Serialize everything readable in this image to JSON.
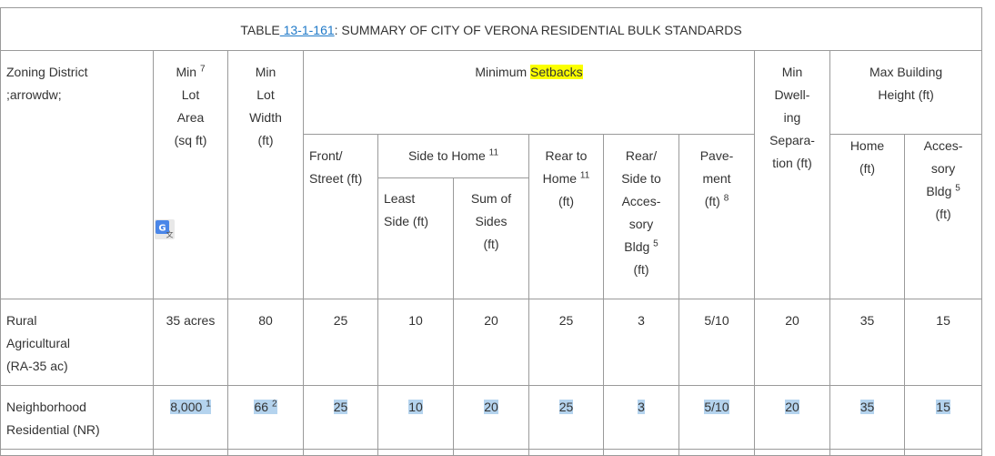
{
  "table": {
    "title_prefix": "TABLE",
    "title_link": " 13-1-161",
    "title_suffix": ": SUMMARY OF CITY OF VERONA RESIDENTIAL BULK STANDARDS",
    "headers": {
      "zoning_district": "Zoning District",
      "zoning_district_note": ";arrowdw;",
      "min_lot_area": "Min",
      "min_lot_area_sup": "7",
      "min_lot_area_rest": "Lot Area (sq ft)",
      "min_lot_width": "Min Lot Width (ft)",
      "minimum_prefix": "Minimum ",
      "minimum_highlight": "Setbacks",
      "min_dwelling_sep": "Min Dwell- ing Separa- tion (ft)",
      "max_building_height": "Max Building Height (ft)",
      "front_street": "Front/ Street (ft)",
      "side_to_home": "Side to Home",
      "side_to_home_sup": "11",
      "rear_to_home": "Rear to Home",
      "rear_to_home_sup": "11",
      "rear_to_home_unit": "(ft)",
      "rear_side_accessory": "Rear/ Side to Acces- sory Bldg",
      "rear_side_accessory_sup": "5",
      "rear_side_accessory_unit": "(ft)",
      "pavement": "Pave- ment (ft)",
      "pavement_sup": "8",
      "least_side": "Least Side (ft)",
      "sum_of_sides": "Sum of Sides (ft)",
      "home": "Home (ft)",
      "accessory_bldg": "Acces- sory Bldg",
      "accessory_bldg_sup": "5",
      "accessory_bldg_unit": "(ft)"
    },
    "rows": [
      {
        "district": "Rural Agricultural (RA-35 ac)",
        "min_lot_area": "35 acres",
        "min_lot_width": "80",
        "front": "25",
        "least_side": "10",
        "sum_sides": "20",
        "rear_home": "25",
        "rear_side_acc": "3",
        "pavement": "5/10",
        "dwelling_sep": "20",
        "height_home": "35",
        "height_acc": "15"
      },
      {
        "district": "Neighborhood Residential (NR)",
        "min_lot_area": "8,000",
        "min_lot_area_sup": "1",
        "min_lot_width": "66",
        "min_lot_width_sup": "2",
        "front": "25",
        "least_side": "10",
        "sum_sides": "20",
        "rear_home": "25",
        "rear_side_acc": "3",
        "pavement": "5/10",
        "dwelling_sep": "20",
        "height_home": "35",
        "height_acc": "15"
      }
    ]
  },
  "colors": {
    "link": "#1f79c8",
    "highlight": "#fbff00",
    "selection": "#b4d3ee",
    "border": "#9a9a9a"
  },
  "icons": {
    "translate_badge": "google-translate-icon"
  }
}
